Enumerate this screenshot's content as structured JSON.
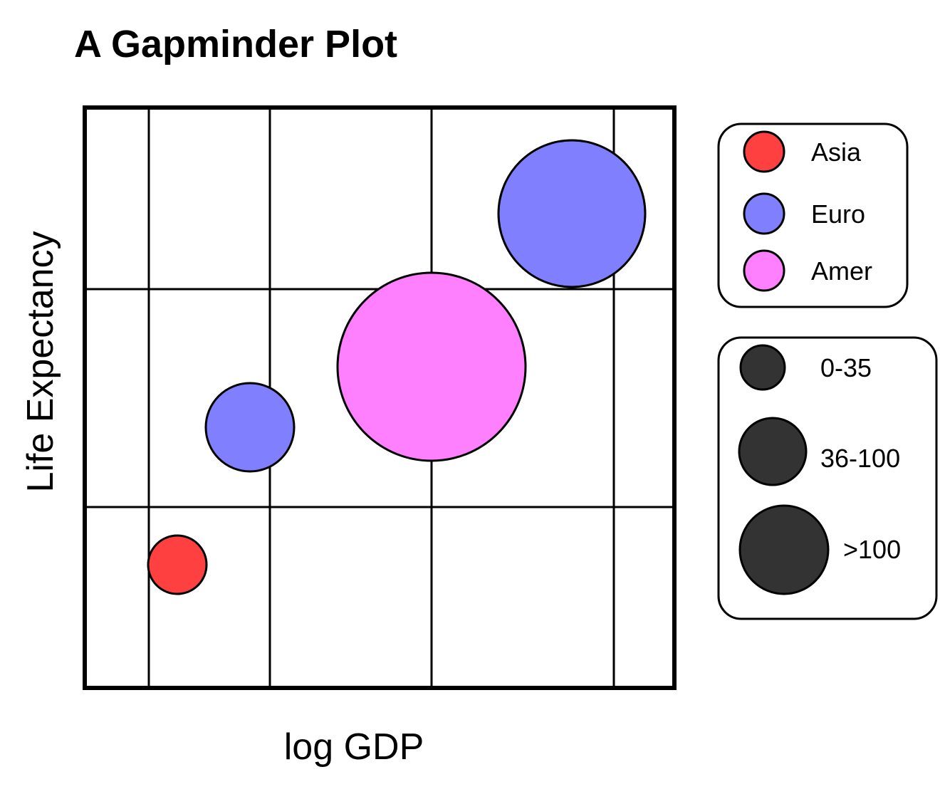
{
  "chart_data": {
    "type": "scatter",
    "title": "A Gapminder Plot",
    "xlabel": "log GDP",
    "ylabel": "Life Expectancy",
    "grid": true,
    "series": [
      {
        "name": "Asia",
        "color": "#ff4040",
        "points": [
          {
            "size_class": "0-35"
          }
        ]
      },
      {
        "name": "Euro",
        "color": "#8080ff",
        "points": [
          {
            "size_class": "36-100"
          },
          {
            "size_class": ">100"
          }
        ]
      },
      {
        "name": "Amer",
        "color": "#ff80ff",
        "points": [
          {
            "size_class": ">100"
          }
        ]
      }
    ],
    "size_legend": {
      "color": "#333333",
      "entries": [
        "0-35",
        "36-100",
        ">100"
      ]
    },
    "legend_placement": "right"
  }
}
